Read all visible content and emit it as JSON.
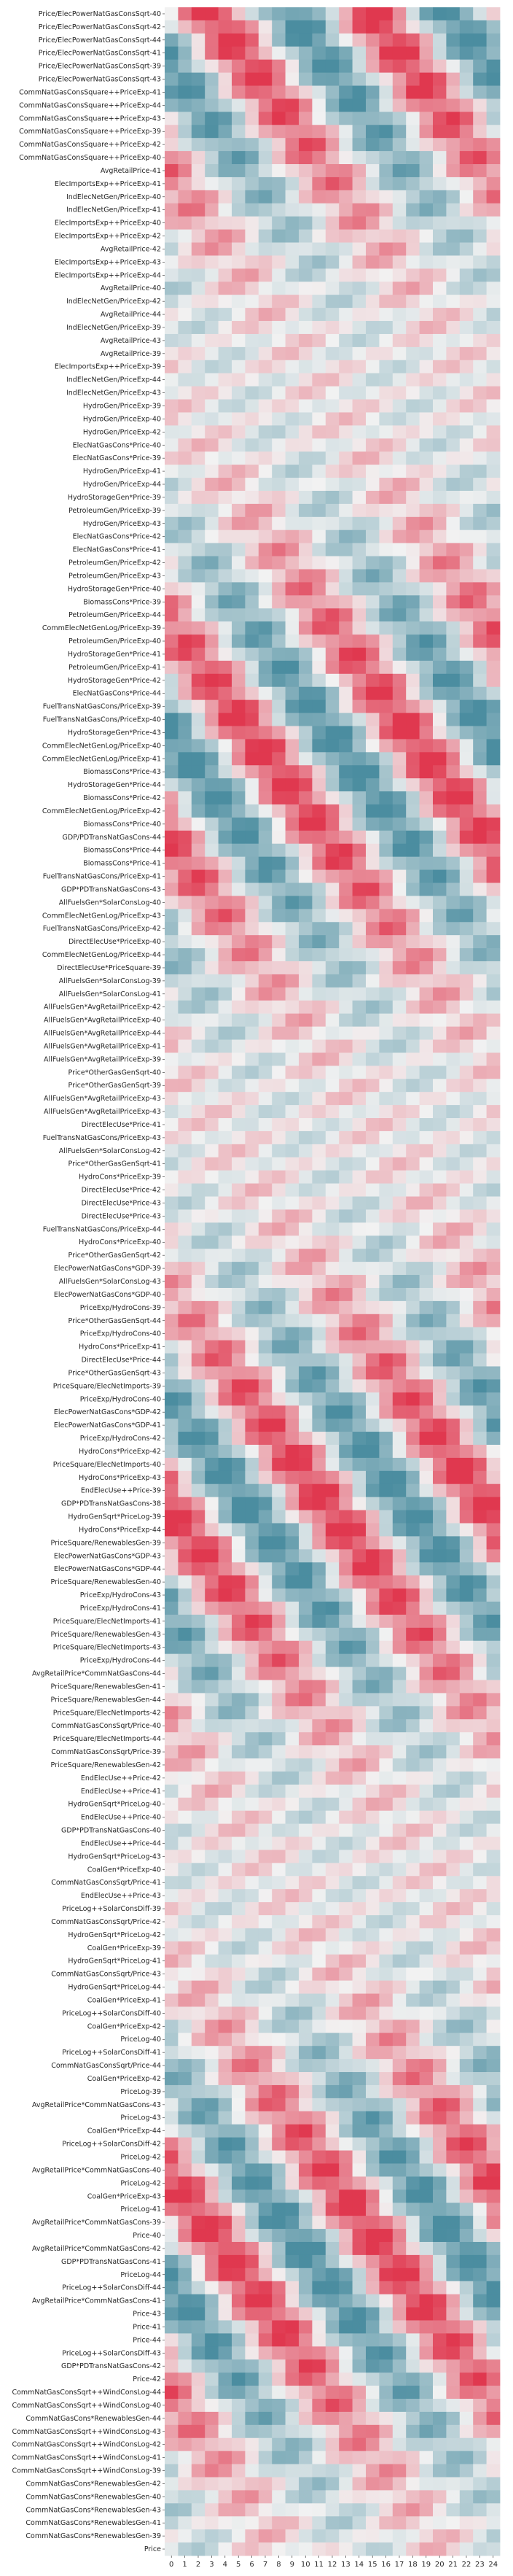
{
  "chart_data": {
    "type": "heatmap",
    "title": "",
    "xlabel": "",
    "ylabel": "",
    "colormap": {
      "low": "#4b8da0",
      "mid": "#f2f2f2",
      "high": "#e0384f"
    },
    "x_labels": [
      "0",
      "1",
      "2",
      "3",
      "4",
      "5",
      "6",
      "7",
      "8",
      "9",
      "10",
      "11",
      "12",
      "13",
      "14",
      "15",
      "16",
      "17",
      "18",
      "19",
      "20",
      "21",
      "22",
      "23",
      "24"
    ],
    "y_labels": [
      "Price/ElecPowerNatGasConsSqrt-40",
      "Price/ElecPowerNatGasConsSqrt-42",
      "Price/ElecPowerNatGasConsSqrt-44",
      "Price/ElecPowerNatGasConsSqrt-41",
      "Price/ElecPowerNatGasConsSqrt-39",
      "Price/ElecPowerNatGasConsSqrt-43",
      "CommNatGasConsSquare++PriceExp-41",
      "CommNatGasConsSquare++PriceExp-44",
      "CommNatGasConsSquare++PriceExp-43",
      "CommNatGasConsSquare++PriceExp-39",
      "CommNatGasConsSquare++PriceExp-42",
      "CommNatGasConsSquare++PriceExp-40",
      "AvgRetailPrice-41",
      "ElecImportsExp++PriceExp-41",
      "IndElecNetGen/PriceExp-40",
      "IndElecNetGen/PriceExp-41",
      "ElecImportsExp++PriceExp-40",
      "ElecImportsExp++PriceExp-42",
      "AvgRetailPrice-42",
      "ElecImportsExp++PriceExp-43",
      "ElecImportsExp++PriceExp-44",
      "AvgRetailPrice-40",
      "IndElecNetGen/PriceExp-42",
      "AvgRetailPrice-44",
      "IndElecNetGen/PriceExp-39",
      "AvgRetailPrice-43",
      "AvgRetailPrice-39",
      "ElecImportsExp++PriceExp-39",
      "IndElecNetGen/PriceExp-44",
      "IndElecNetGen/PriceExp-43",
      "HydroGen/PriceExp-39",
      "HydroGen/PriceExp-40",
      "HydroGen/PriceExp-42",
      "ElecNatGasCons*Price-40",
      "ElecNatGasCons*Price-39",
      "HydroGen/PriceExp-41",
      "HydroGen/PriceExp-44",
      "HydroStorageGen*Price-39",
      "PetroleumGen/PriceExp-39",
      "HydroGen/PriceExp-43",
      "ElecNatGasCons*Price-42",
      "ElecNatGasCons*Price-41",
      "PetroleumGen/PriceExp-42",
      "PetroleumGen/PriceExp-43",
      "HydroStorageGen*Price-40",
      "BiomassCons*Price-39",
      "PetroleumGen/PriceExp-44",
      "CommElecNetGenLog/PriceExp-39",
      "PetroleumGen/PriceExp-40",
      "HydroStorageGen*Price-41",
      "PetroleumGen/PriceExp-41",
      "HydroStorageGen*Price-42",
      "ElecNatGasCons*Price-44",
      "FuelTransNatGasCons/PriceExp-39",
      "FuelTransNatGasCons/PriceExp-40",
      "HydroStorageGen*Price-43",
      "CommElecNetGenLog/PriceExp-40",
      "CommElecNetGenLog/PriceExp-41",
      "BiomassCons*Price-43",
      "HydroStorageGen*Price-44",
      "BiomassCons*Price-42",
      "CommElecNetGenLog/PriceExp-42",
      "BiomassCons*Price-40",
      "GDP/PDTransNatGasCons-44",
      "BiomassCons*Price-44",
      "BiomassCons*Price-41",
      "FuelTransNatGasCons/PriceExp-41",
      "GDP*PDTransNatGasCons-43",
      "AllFuelsGen*SolarConsLog-40",
      "CommElecNetGenLog/PriceExp-43",
      "FuelTransNatGasCons/PriceExp-42",
      "DirectElecUse*PriceExp-40",
      "CommElecNetGenLog/PriceExp-44",
      "DirectElecUse*PriceSquare-39",
      "AllFuelsGen*SolarConsLog-39",
      "AllFuelsGen*SolarConsLog-41",
      "AllFuelsGen*AvgRetailPriceExp-42",
      "AllFuelsGen*AvgRetailPriceExp-40",
      "AllFuelsGen*AvgRetailPriceExp-44",
      "AllFuelsGen*AvgRetailPriceExp-41",
      "AllFuelsGen*AvgRetailPriceExp-39",
      "Price*OtherGasGenSqrt-40",
      "Price*OtherGasGenSqrt-39",
      "AllFuelsGen*AvgRetailPriceExp-43",
      "AllFuelsGen*AvgRetailPriceExp-43",
      "DirectElecUse*Price-41",
      "FuelTransNatGasCons/PriceExp-43",
      "AllFuelsGen*SolarConsLog-42",
      "Price*OtherGasGenSqrt-41",
      "HydroCons*PriceExp-39",
      "DirectElecUse*Price-42",
      "DirectElecUse*Price-43",
      "DirectElecUse*Price-43",
      "FuelTransNatGasCons/PriceExp-44",
      "HydroCons*PriceExp-40",
      "Price*OtherGasGenSqrt-42",
      "ElecPowerNatGasCons*GDP-39",
      "AllFuelsGen*SolarConsLog-43",
      "ElecPowerNatGasCons*GDP-40",
      "PriceExp/HydroCons-39",
      "Price*OtherGasGenSqrt-44",
      "PriceExp/HydroCons-40",
      "HydroCons*PriceExp-41",
      "DirectElecUse*Price-44",
      "Price*OtherGasGenSqrt-43",
      "PriceSquare/ElecNetImports-39",
      "PriceExp/HydroCons-40",
      "ElecPowerNatGasCons*GDP-42",
      "ElecPowerNatGasCons*GDP-41",
      "PriceExp/HydroCons-42",
      "HydroCons*PriceExp-42",
      "PriceSquare/ElecNetImports-40",
      "HydroCons*PriceExp-43",
      "EndElecUse++Price-39",
      "GDP*PDTransNatGasCons-38",
      "HydroGenSqrt*PriceLog-39",
      "HydroCons*PriceExp-44",
      "PriceSquare/RenewablesGen-39",
      "ElecPowerNatGasCons*GDP-43",
      "ElecPowerNatGasCons*GDP-44",
      "PriceSquare/RenewablesGen-40",
      "PriceExp/HydroCons-43",
      "PriceExp/HydroCons-41",
      "PriceSquare/ElecNetImports-41",
      "PriceSquare/RenewablesGen-43",
      "PriceSquare/ElecNetImports-43",
      "PriceExp/HydroCons-44",
      "AvgRetailPrice*CommNatGasCons-44",
      "PriceSquare/RenewablesGen-41",
      "PriceSquare/RenewablesGen-44",
      "PriceSquare/ElecNetImports-42",
      "CommNatGasConsSqrt/Price-40",
      "PriceSquare/ElecNetImports-44",
      "CommNatGasConsSqrt/Price-39",
      "PriceSquare/RenewablesGen-42",
      "EndElecUse++Price-42",
      "EndElecUse++Price-41",
      "HydroGenSqrt*PriceLog-40",
      "EndElecUse++Price-40",
      "GDP*PDTransNatGasCons-40",
      "EndElecUse++Price-44",
      "HydroGenSqrt*PriceLog-43",
      "CoalGen*PriceExp-40",
      "CommNatGasConsSqrt/Price-41",
      "EndElecUse++Price-43",
      "PriceLog++SolarConsDiff-39",
      "CommNatGasConsSqrt/Price-42",
      "HydroGenSqrt*PriceLog-42",
      "CoalGen*PriceExp-39",
      "HydroGenSqrt*PriceLog-41",
      "CommNatGasConsSqrt/Price-43",
      "HydroGenSqrt*PriceLog-44",
      "CoalGen*PriceExp-41",
      "PriceLog++SolarConsDiff-40",
      "CoalGen*PriceExp-42",
      "PriceLog-40",
      "PriceLog++SolarConsDiff-41",
      "CommNatGasConsSqrt/Price-44",
      "CoalGen*PriceExp-42",
      "PriceLog-39",
      "AvgRetailPrice*CommNatGasCons-43",
      "PriceLog-43",
      "CoalGen*PriceExp-44",
      "PriceLog++SolarConsDiff-42",
      "PriceLog-42",
      "AvgRetailPrice*CommNatGasCons-40",
      "PriceLog-42",
      "CoalGen*PriceExp-43",
      "PriceLog-41",
      "AvgRetailPrice*CommNatGasCons-39",
      "Price-40",
      "AvgRetailPrice*CommNatGasCons-42",
      "GDP*PDTransNatGasCons-41",
      "PriceLog-44",
      "PriceLog++SolarConsDiff-44",
      "AvgRetailPrice*CommNatGasCons-41",
      "Price-43",
      "Price-41",
      "Price-44",
      "PriceLog++SolarConsDiff-43",
      "GDP*PDTransNatGasCons-42",
      "Price-42",
      "CommNatGasConsSqrt++WindConsLog-44",
      "CommNatGasConsSqrt++WindConsLog-40",
      "CommNatGasCons*RenewablesGen-44",
      "CommNatGasConsSqrt++WindConsLog-43",
      "CommNatGasConsSqrt++WindConsLog-42",
      "CommNatGasConsSqrt++WindConsLog-41",
      "CommNatGasConsSqrt++WindConsLog-39",
      "CommNatGasCons*RenewablesGen-42",
      "CommNatGasCons*RenewablesGen-40",
      "CommNatGasCons*RenewablesGen-43",
      "CommNatGasCons*RenewablesGen-41",
      "CommNatGasCons*RenewablesGen-39",
      "Price"
    ]
  }
}
